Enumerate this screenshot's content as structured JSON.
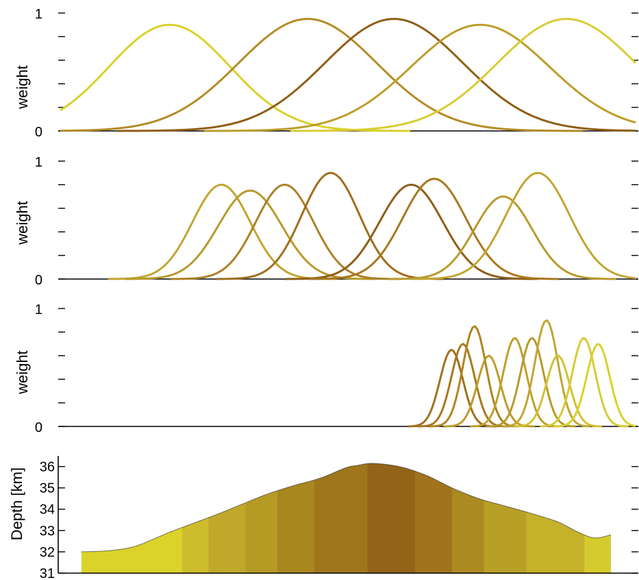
{
  "chart_data": [
    {
      "type": "line",
      "panel": "weights-1",
      "ylabel": "weight",
      "ylim": [
        0,
        1
      ],
      "y_ticks": [
        "0",
        "1"
      ],
      "x_range": [
        0,
        1
      ],
      "curve_shape": "gaussian",
      "series": [
        {
          "center": 0.19,
          "peak": 0.9,
          "sigma": 0.105,
          "color": "#d9d12a"
        },
        {
          "center": 0.43,
          "peak": 0.95,
          "sigma": 0.12,
          "color": "#b48b25"
        },
        {
          "center": 0.58,
          "peak": 0.95,
          "sigma": 0.12,
          "color": "#8f5e16"
        },
        {
          "center": 0.73,
          "peak": 0.9,
          "sigma": 0.12,
          "color": "#bc9d2a"
        },
        {
          "center": 0.88,
          "peak": 0.95,
          "sigma": 0.12,
          "color": "#d9cc32"
        }
      ]
    },
    {
      "type": "line",
      "panel": "weights-2",
      "ylabel": "weight",
      "ylim": [
        0,
        1
      ],
      "y_ticks": [
        "0",
        "1"
      ],
      "x_range": [
        0,
        1
      ],
      "curve_shape": "gaussian",
      "series": [
        {
          "center": 0.28,
          "peak": 0.8,
          "sigma": 0.05,
          "color": "#c2a532"
        },
        {
          "center": 0.33,
          "peak": 0.75,
          "sigma": 0.055,
          "color": "#b89a2b"
        },
        {
          "center": 0.39,
          "peak": 0.8,
          "sigma": 0.05,
          "color": "#ad8126"
        },
        {
          "center": 0.47,
          "peak": 0.9,
          "sigma": 0.05,
          "color": "#a06e1c"
        },
        {
          "center": 0.61,
          "peak": 0.8,
          "sigma": 0.055,
          "color": "#8f5e16"
        },
        {
          "center": 0.65,
          "peak": 0.85,
          "sigma": 0.055,
          "color": "#a8781e"
        },
        {
          "center": 0.77,
          "peak": 0.7,
          "sigma": 0.05,
          "color": "#b89a2b"
        },
        {
          "center": 0.83,
          "peak": 0.9,
          "sigma": 0.055,
          "color": "#c2a532"
        }
      ]
    },
    {
      "type": "line",
      "panel": "weights-3",
      "ylabel": "weight",
      "ylim": [
        0,
        1
      ],
      "y_ticks": [
        "0",
        "1"
      ],
      "x_range": [
        0,
        1
      ],
      "curve_shape": "gaussian",
      "series": [
        {
          "center": 0.68,
          "peak": 0.65,
          "sigma": 0.02,
          "color": "#a0701e"
        },
        {
          "center": 0.7,
          "peak": 0.7,
          "sigma": 0.02,
          "color": "#a8781e"
        },
        {
          "center": 0.72,
          "peak": 0.85,
          "sigma": 0.02,
          "color": "#b0841f"
        },
        {
          "center": 0.745,
          "peak": 0.6,
          "sigma": 0.02,
          "color": "#bd9c2a"
        },
        {
          "center": 0.79,
          "peak": 0.75,
          "sigma": 0.02,
          "color": "#c0a02c"
        },
        {
          "center": 0.82,
          "peak": 0.75,
          "sigma": 0.02,
          "color": "#b89a2b"
        },
        {
          "center": 0.845,
          "peak": 0.9,
          "sigma": 0.02,
          "color": "#c2a532"
        },
        {
          "center": 0.865,
          "peak": 0.6,
          "sigma": 0.02,
          "color": "#d2c230"
        },
        {
          "center": 0.91,
          "peak": 0.75,
          "sigma": 0.02,
          "color": "#d6cb34"
        },
        {
          "center": 0.935,
          "peak": 0.7,
          "sigma": 0.02,
          "color": "#d9d12a"
        }
      ]
    },
    {
      "type": "area",
      "panel": "depth-profile",
      "ylabel": "Depth [km]",
      "ylim": [
        31,
        36.5
      ],
      "y_ticks": [
        "31",
        "32",
        "33",
        "34",
        "35",
        "36"
      ],
      "x_range": [
        0,
        1
      ],
      "profile": {
        "x": [
          0.0,
          0.05,
          0.1,
          0.15,
          0.18,
          0.25,
          0.3,
          0.35,
          0.4,
          0.45,
          0.5,
          0.52,
          0.55,
          0.6,
          0.65,
          0.7,
          0.75,
          0.8,
          0.85,
          0.9,
          0.94,
          0.97,
          1.0
        ],
        "y": [
          32.0,
          32.05,
          32.25,
          32.75,
          33.05,
          33.7,
          34.2,
          34.7,
          35.1,
          35.45,
          35.95,
          36.05,
          36.15,
          36.0,
          35.6,
          35.0,
          34.5,
          34.15,
          33.8,
          33.4,
          32.9,
          32.65,
          32.8
        ]
      },
      "bands": [
        {
          "x0": 0.0,
          "x1": 0.19,
          "color": "#dbd32a"
        },
        {
          "x0": 0.19,
          "x1": 0.24,
          "color": "#cdbd2c"
        },
        {
          "x0": 0.24,
          "x1": 0.31,
          "color": "#c0a82a"
        },
        {
          "x0": 0.31,
          "x1": 0.37,
          "color": "#b59b24"
        },
        {
          "x0": 0.37,
          "x1": 0.44,
          "color": "#a9871f"
        },
        {
          "x0": 0.44,
          "x1": 0.54,
          "color": "#9f761c"
        },
        {
          "x0": 0.54,
          "x1": 0.63,
          "color": "#926417"
        },
        {
          "x0": 0.63,
          "x1": 0.7,
          "color": "#a0741c"
        },
        {
          "x0": 0.7,
          "x1": 0.76,
          "color": "#ac8a22"
        },
        {
          "x0": 0.76,
          "x1": 0.84,
          "color": "#b89f26"
        },
        {
          "x0": 0.84,
          "x1": 0.95,
          "color": "#c5b12a"
        },
        {
          "x0": 0.95,
          "x1": 1.0,
          "color": "#d5cb2e"
        }
      ]
    }
  ]
}
